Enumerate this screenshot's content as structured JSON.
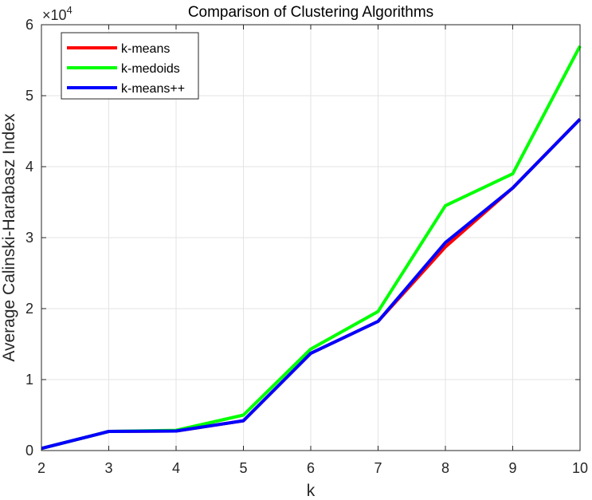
{
  "chart_data": {
    "type": "line",
    "title": "Comparison of Clustering Algorithms",
    "xlabel": "k",
    "ylabel": "Average Calinski-Harabasz Index",
    "exponent_label": "×10",
    "exponent_power": "4",
    "x": [
      2,
      3,
      4,
      5,
      6,
      7,
      8,
      9,
      10
    ],
    "xlim": [
      2,
      10
    ],
    "ylim": [
      0,
      6
    ],
    "y_scale_factor": 10000,
    "xticks": [
      "2",
      "3",
      "4",
      "5",
      "6",
      "7",
      "8",
      "9",
      "10"
    ],
    "yticks": [
      "0",
      "1",
      "2",
      "3",
      "4",
      "5",
      "6"
    ],
    "grid": true,
    "legend_position": "top-left",
    "series": [
      {
        "name": "k-means",
        "color": "#ff0000",
        "values": [
          300,
          2700,
          2750,
          4200,
          13700,
          18200,
          28700,
          37000,
          46700
        ]
      },
      {
        "name": "k-medoids",
        "color": "#00ff00",
        "values": [
          300,
          2700,
          2850,
          5000,
          14300,
          19600,
          34500,
          39000,
          57000
        ]
      },
      {
        "name": "k-means++",
        "color": "#0000ff",
        "values": [
          300,
          2700,
          2750,
          4200,
          13700,
          18200,
          29300,
          37000,
          46700
        ]
      }
    ]
  }
}
